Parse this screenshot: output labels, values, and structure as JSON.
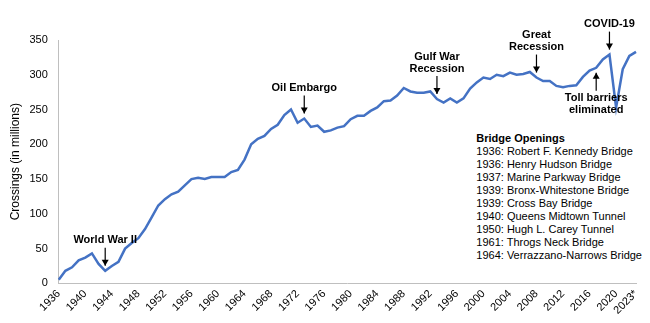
{
  "chart_data": {
    "type": "line",
    "y_label": "Crossings (in millions)",
    "categories": [
      "1936",
      null,
      null,
      null,
      "1940",
      null,
      null,
      null,
      "1944",
      null,
      null,
      null,
      "1948",
      null,
      null,
      null,
      "1952",
      null,
      null,
      null,
      "1956",
      null,
      null,
      null,
      "1960",
      null,
      null,
      null,
      "1964",
      null,
      null,
      null,
      "1968",
      null,
      null,
      null,
      "1972",
      null,
      null,
      null,
      "1976",
      null,
      null,
      null,
      "1980",
      null,
      null,
      null,
      "1984",
      null,
      null,
      null,
      "1988",
      null,
      null,
      null,
      "1992",
      null,
      null,
      null,
      "1996",
      null,
      null,
      null,
      "2000",
      null,
      null,
      null,
      "2004",
      null,
      null,
      null,
      "2008",
      null,
      null,
      null,
      "2012",
      null,
      null,
      null,
      "2016",
      null,
      null,
      null,
      "2020",
      null,
      null,
      "2023*"
    ],
    "values": [
      5,
      18,
      23,
      33,
      37,
      43,
      28,
      18,
      25,
      31,
      50,
      58,
      65,
      78,
      95,
      112,
      121,
      128,
      132,
      141,
      150,
      152,
      150,
      153,
      153,
      153,
      160,
      163,
      178,
      200,
      208,
      212,
      222,
      228,
      242,
      250,
      231,
      237,
      225,
      227,
      218,
      220,
      224,
      226,
      236,
      241,
      241,
      248,
      253,
      262,
      263,
      270,
      281,
      276,
      274,
      274,
      276,
      265,
      260,
      266,
      260,
      266,
      280,
      289,
      296,
      294,
      300,
      298,
      303,
      300,
      301,
      304,
      296,
      291,
      291,
      284,
      282,
      284,
      285,
      297,
      306,
      310,
      322,
      329,
      253,
      308,
      327,
      333
    ],
    "color": "#4472c4",
    "ylim": [
      0,
      350
    ],
    "yticks": [
      0,
      50,
      100,
      150,
      200,
      250,
      300,
      350
    ],
    "grid": false,
    "annotations": [
      {
        "text": [
          "World War II"
        ],
        "x": 1943,
        "direction": "down"
      },
      {
        "text": [
          "Oil Embargo"
        ],
        "x": 1973,
        "direction": "down"
      },
      {
        "text": [
          "Gulf War",
          "Recession"
        ],
        "x": 1993,
        "direction": "down"
      },
      {
        "text": [
          "Great",
          "Recession"
        ],
        "x": 2008,
        "direction": "down"
      },
      {
        "text": [
          "Toll barriers",
          "eliminated"
        ],
        "x": 2017,
        "direction": "up"
      },
      {
        "text": [
          "COVID-19"
        ],
        "x": 2019,
        "direction": "down"
      }
    ],
    "bridge_openings": {
      "title": "Bridge Openings",
      "items": [
        "1936: Robert F. Kennedy Bridge",
        "1936: Henry Hudson Bridge",
        "1937: Marine Parkway Bridge",
        "1939: Bronx-Whitestone Bridge",
        "1939: Cross Bay Bridge",
        "1940: Queens Midtown Tunnel",
        "1950: Hugh L. Carey Tunnel",
        "1961: Throgs Neck Bridge",
        "1964: Verrazzano-Narrows Bridge"
      ]
    }
  }
}
